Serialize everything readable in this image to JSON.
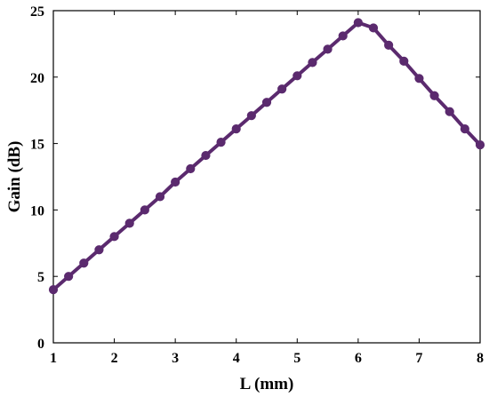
{
  "chart_data": {
    "type": "line",
    "title": "",
    "xlabel": "L (mm)",
    "ylabel": "Gain (dB)",
    "xlim": [
      1,
      8
    ],
    "ylim": [
      0,
      25
    ],
    "x_ticks": [
      1,
      2,
      3,
      4,
      5,
      6,
      7,
      8
    ],
    "y_ticks": [
      0,
      5,
      10,
      15,
      20,
      25
    ],
    "grid": false,
    "line_color": "#5b2a6e",
    "series": [
      {
        "x": [
          1,
          1.25,
          1.5,
          1.75,
          2,
          2.25,
          2.5,
          2.75,
          3,
          3.25,
          3.5,
          3.75,
          4,
          4.25,
          4.5,
          4.75,
          5,
          5.25,
          5.5,
          5.75,
          6,
          6.25,
          6.5,
          6.75,
          7,
          7.25,
          7.5,
          7.75,
          8
        ],
        "y": [
          4.0,
          5.0,
          6.0,
          7.0,
          8.0,
          9.0,
          10.0,
          11.0,
          12.1,
          13.1,
          14.1,
          15.1,
          16.1,
          17.1,
          18.1,
          19.1,
          20.1,
          21.1,
          22.1,
          23.1,
          24.1,
          23.7,
          22.4,
          21.2,
          19.9,
          18.6,
          17.4,
          16.1,
          14.9
        ]
      }
    ]
  }
}
